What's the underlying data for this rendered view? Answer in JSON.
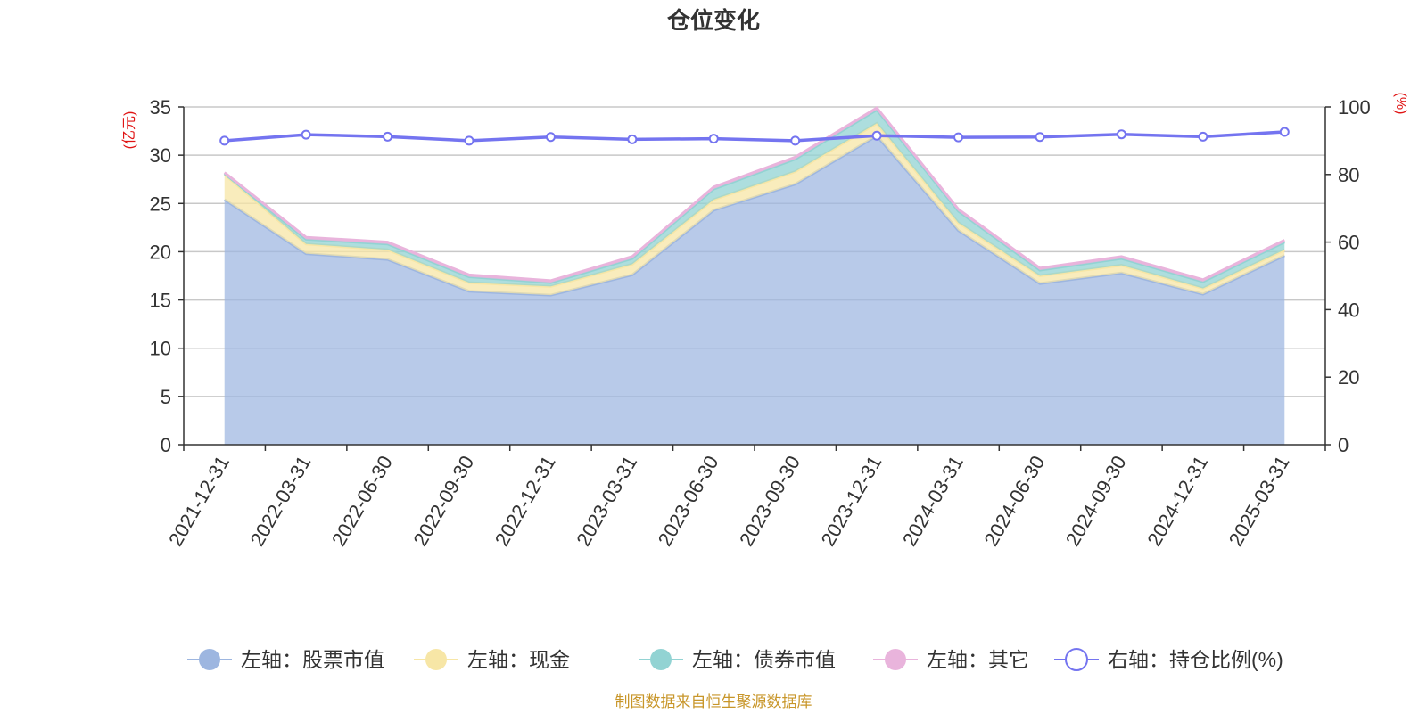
{
  "colors": {
    "stocks": "#9db6e0",
    "cash": "#f7e6a6",
    "bonds": "#92d3d3",
    "other": "#e9b4dc",
    "ratio": "#7474f0",
    "unit_label": "#e01414",
    "source": "#c8962a"
  },
  "chart_data": {
    "type": "area",
    "title": "仓位变化",
    "left_axis_unit": "(亿元)",
    "right_axis_unit": "(%)",
    "ylim_left": [
      0,
      35
    ],
    "yticks_left": [
      "0",
      "5",
      "10",
      "15",
      "20",
      "25",
      "30",
      "35"
    ],
    "ylim_right": [
      0,
      100
    ],
    "yticks_right": [
      "0",
      "20",
      "40",
      "60",
      "80",
      "100"
    ],
    "grid": true,
    "legend_position": "bottom",
    "categories": [
      "2021-12-31",
      "2022-03-31",
      "2022-06-30",
      "2022-09-30",
      "2022-12-31",
      "2023-03-31",
      "2023-06-30",
      "2023-09-30",
      "2023-12-31",
      "2024-03-31",
      "2024-06-30",
      "2024-09-30",
      "2024-12-31",
      "2025-03-31"
    ],
    "stacked_series": [
      {
        "name": "左轴：股票市值",
        "key": "stocks",
        "values": [
          25.4,
          19.8,
          19.2,
          15.9,
          15.5,
          17.6,
          24.3,
          27.0,
          32.0,
          22.2,
          16.7,
          17.8,
          15.6,
          19.6
        ]
      },
      {
        "name": "左轴：现金",
        "key": "cash",
        "values": [
          2.6,
          1.0,
          1.0,
          0.9,
          0.9,
          1.1,
          1.1,
          1.3,
          1.3,
          0.8,
          0.8,
          0.8,
          0.6,
          0.6
        ]
      },
      {
        "name": "左轴：债券市值",
        "key": "bonds",
        "values": [
          0.1,
          0.5,
          0.6,
          0.6,
          0.4,
          0.6,
          1.1,
          1.3,
          1.4,
          1.2,
          0.6,
          0.7,
          0.7,
          0.8
        ]
      },
      {
        "name": "左轴：其它",
        "key": "other",
        "values": [
          0.1,
          0.2,
          0.2,
          0.2,
          0.2,
          0.2,
          0.2,
          0.2,
          0.2,
          0.2,
          0.2,
          0.2,
          0.2,
          0.2
        ]
      }
    ],
    "line_series": {
      "name": "右轴：持仓比例(%)",
      "key": "ratio",
      "values": [
        90.0,
        91.8,
        91.2,
        90.0,
        91.1,
        90.4,
        90.6,
        90.0,
        91.5,
        91.0,
        91.1,
        91.9,
        91.2,
        92.6
      ]
    }
  },
  "source_note": "制图数据来自恒生聚源数据库"
}
